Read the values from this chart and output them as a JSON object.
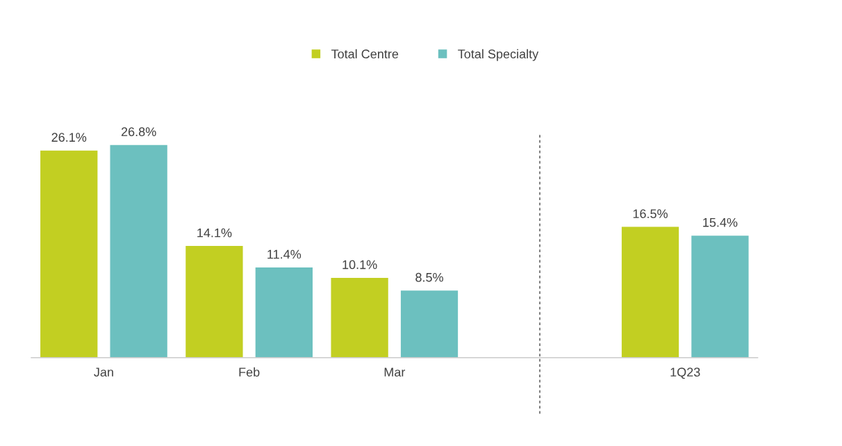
{
  "chart_data": {
    "type": "bar",
    "categories": [
      "Jan",
      "Feb",
      "Mar",
      null,
      "1Q23"
    ],
    "series": [
      {
        "name": "Total Centre",
        "color": "#c2cf22",
        "values": [
          26.1,
          14.1,
          10.1,
          null,
          16.5
        ],
        "value_labels": [
          "26.1%",
          "14.1%",
          "10.1%",
          null,
          "16.5%"
        ]
      },
      {
        "name": "Total Specialty",
        "color": "#6cc0bf",
        "values": [
          26.8,
          11.4,
          8.5,
          null,
          15.4
        ],
        "value_labels": [
          "26.8%",
          "11.4%",
          "8.5%",
          null,
          "15.4%"
        ]
      }
    ],
    "legend": "top"
  }
}
